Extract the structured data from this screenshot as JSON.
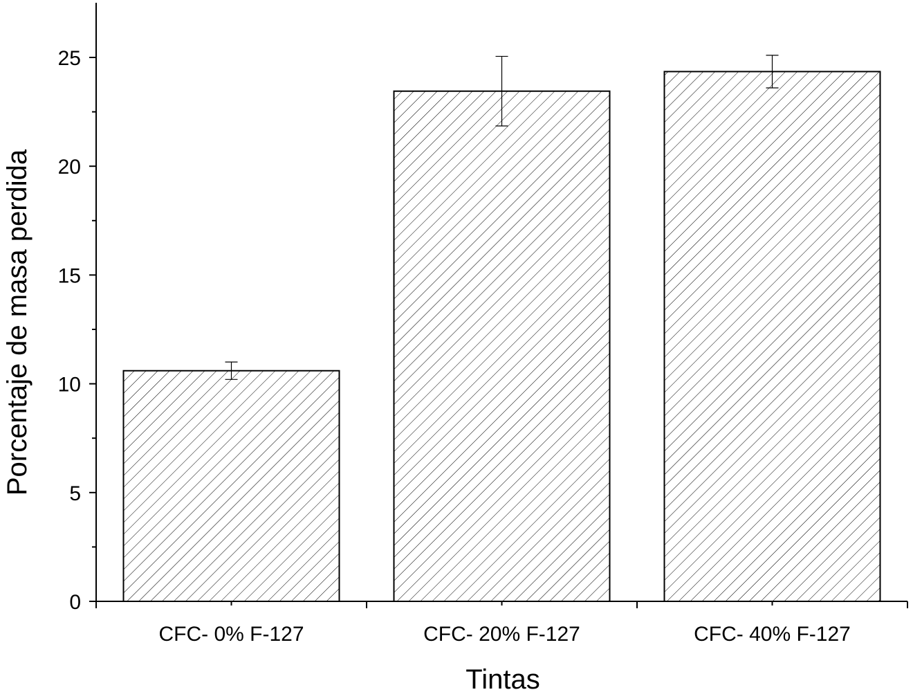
{
  "chart_data": {
    "type": "bar",
    "categories": [
      "CFC- 0% F-127",
      "CFC- 20% F-127",
      "CFC- 40% F-127"
    ],
    "values": [
      10.6,
      23.45,
      24.35
    ],
    "errors": [
      0.4,
      1.6,
      0.75
    ],
    "xlabel": "Tintas",
    "ylabel": "Porcentaje de masa perdida",
    "ylim": [
      0,
      27.5
    ],
    "yticks": [
      0,
      5,
      10,
      15,
      20,
      25
    ],
    "ytick_labels": [
      "0",
      "5",
      "10",
      "15",
      "20",
      "25"
    ],
    "bar_fill": "hatched diagonal",
    "grid": false,
    "colors": {
      "bar_edge": "#000000",
      "hatch": "#000000",
      "background": "#ffffff"
    }
  }
}
